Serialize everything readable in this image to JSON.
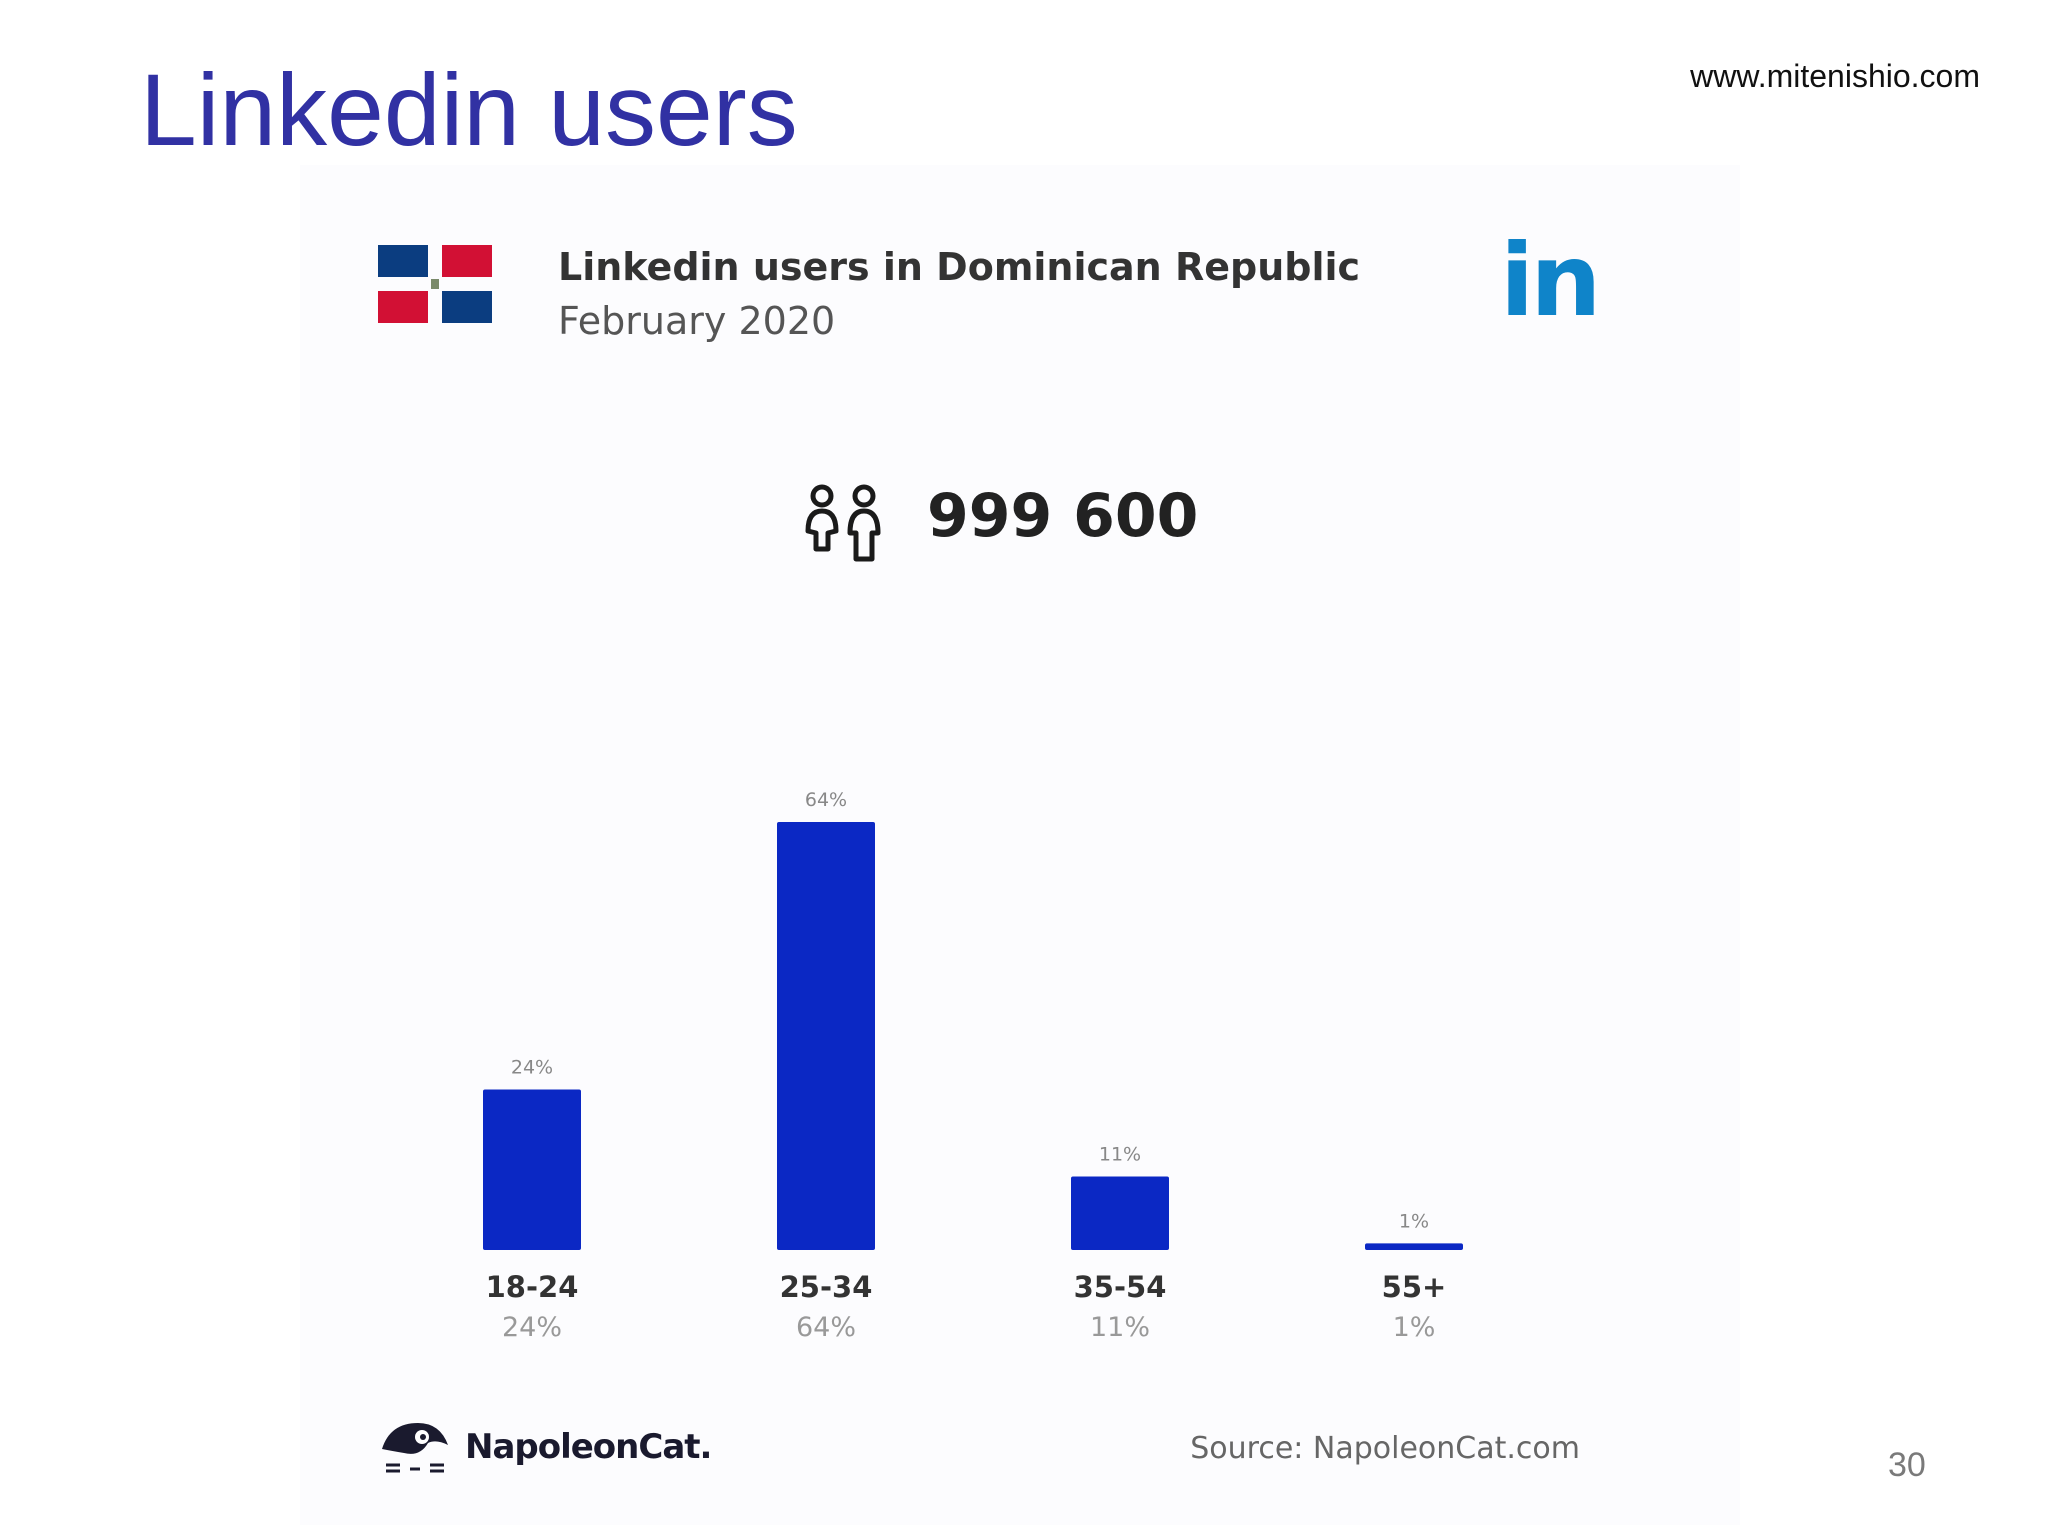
{
  "slide": {
    "title": "Linkedin users",
    "website": "www.mitenishio.com",
    "page_number": "30"
  },
  "infographic": {
    "title": "Linkedin users in Dominican Republic",
    "subtitle": "February 2020",
    "users_count": "999 600",
    "brand": "NapoleonCat.",
    "source": "Source: NapoleonCat.com",
    "linkedin_logo": "in",
    "icons": [
      "dominican-flag-icon",
      "users-icon",
      "linkedin-icon",
      "napoleoncat-logo-icon"
    ]
  },
  "chart_data": {
    "type": "bar",
    "categories": [
      "18-24",
      "25-34",
      "35-54",
      "55+"
    ],
    "values": [
      24,
      64,
      11,
      1
    ],
    "value_labels": [
      "24%",
      "64%",
      "11%",
      "1%"
    ],
    "category_sublabels": [
      "24%",
      "64%",
      "11%",
      "1%"
    ],
    "ylim": [
      0,
      64
    ],
    "grid": false,
    "colors": {
      "bar": "#0b28c4",
      "category_label": "#333333",
      "sublabel": "#999999",
      "value_label": "#888888"
    }
  },
  "colors": {
    "title": "#3131a3",
    "linkedin_blue": "#0f84c9",
    "flag_blue": "#0b3d80",
    "flag_red": "#d21034"
  }
}
